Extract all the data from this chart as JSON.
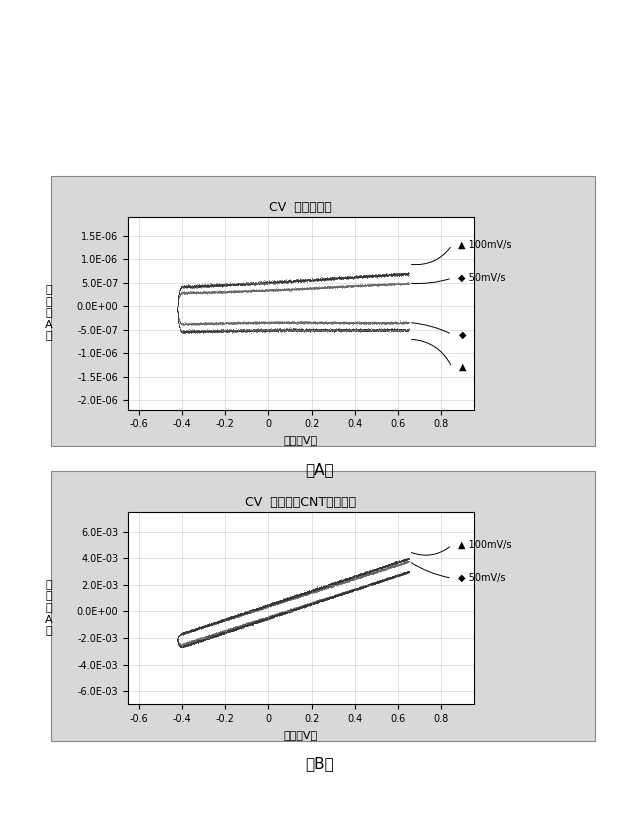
{
  "fig_width": 6.4,
  "fig_height": 8.19,
  "title_A": "CV  飽和食塩水",
  "title_B": "CV  食塩添加CNT水性ゲル",
  "xlabel": "電位（V）",
  "ylabel_A": "電\n流\n（\nA\n）",
  "ylabel_B": "電\n流\n（\nA\n）",
  "xlim": [
    -0.65,
    0.95
  ],
  "ylim_A": [
    -2.2e-06,
    1.9e-06
  ],
  "ylim_B": [
    -0.007,
    0.0075
  ],
  "xticks": [
    -0.6,
    -0.4,
    -0.2,
    0.0,
    0.2,
    0.4,
    0.6,
    0.8
  ],
  "xticklabels": [
    "-0.6",
    "-0.4",
    "-0.2",
    "0",
    "0.2",
    "0.4",
    "0.6",
    "0.8"
  ],
  "yticks_A": [
    -2e-06,
    -1.5e-06,
    -1e-06,
    -5e-07,
    0.0,
    5e-07,
    1e-06,
    1.5e-06
  ],
  "yticklabels_A": [
    "-2.0E-06",
    "-1.5E-06",
    "-1.0E-06",
    "-5.0E-07",
    "0.0E+00",
    "5.0E-07",
    "1.0E-06",
    "1.5E-06"
  ],
  "yticks_B": [
    -0.006,
    -0.004,
    -0.002,
    0.0,
    0.002,
    0.004,
    0.006
  ],
  "yticklabels_B": [
    "-6.0E-03",
    "-4.0E-03",
    "-2.0E-03",
    "0.0E+00",
    "2.0E-03",
    "4.0E-03",
    "6.0E-03"
  ],
  "label_A": "（A）",
  "label_B": "（B）",
  "color_dark": "#333333",
  "color_med": "#666666",
  "panel_bg": "#d8d8d8",
  "plot_bg": "#ffffff",
  "grid_color": "#aaaaaa"
}
